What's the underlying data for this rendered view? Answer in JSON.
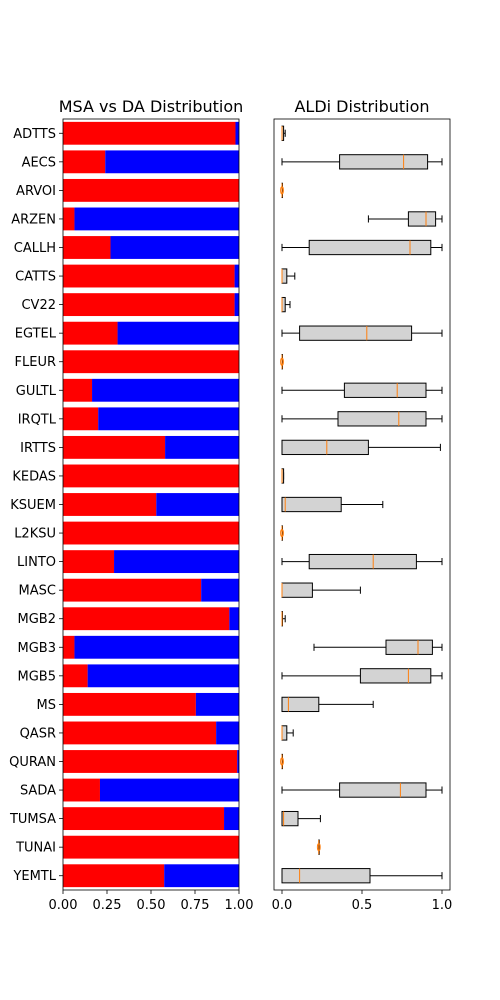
{
  "chart_data": [
    {
      "type": "bar",
      "orientation": "horizontal-stacked",
      "title": "MSA vs DA Distribution",
      "xlim": [
        0,
        1
      ],
      "xticks": [
        "0.00",
        "0.25",
        "0.50",
        "0.75",
        "1.00"
      ],
      "colors": {
        "msa": "#ff0000",
        "da": "#0000ff"
      },
      "categories": [
        "ADTTS",
        "AECS",
        "ARVOI",
        "ARZEN",
        "CALLH",
        "CATTS",
        "CV22",
        "EGTEL",
        "FLEUR",
        "GULTL",
        "IRQTL",
        "IRTTS",
        "KEDAS",
        "KSUEM",
        "L2KSU",
        "LINTO",
        "MASC",
        "MGB2",
        "MGB3",
        "MGB5",
        "MS",
        "QASR",
        "QURAN",
        "SADA",
        "TUMSA",
        "TUNAI",
        "YEMTL"
      ],
      "series": [
        {
          "color": "#ff0000",
          "values": [
            0.98,
            0.24,
            1.0,
            0.065,
            0.27,
            0.975,
            0.975,
            0.31,
            1.0,
            0.165,
            0.2,
            0.58,
            1.0,
            0.53,
            1.0,
            0.29,
            0.785,
            0.945,
            0.065,
            0.14,
            0.755,
            0.87,
            0.99,
            0.21,
            0.915,
            1.0,
            0.575
          ]
        },
        {
          "color": "#0000ff",
          "values": [
            0.02,
            0.76,
            0.0,
            0.935,
            0.73,
            0.025,
            0.025,
            0.69,
            0.0,
            0.835,
            0.8,
            0.42,
            0.0,
            0.47,
            0.0,
            0.71,
            0.215,
            0.055,
            0.935,
            0.86,
            0.245,
            0.13,
            0.01,
            0.79,
            0.085,
            0.0,
            0.425
          ]
        }
      ]
    },
    {
      "type": "boxplot",
      "title": "ALDi Distribution",
      "xlim": [
        -0.05,
        1.05
      ],
      "xticks": [
        "0.0",
        "0.5",
        "1.0"
      ],
      "box_color": "#d3d3d3",
      "median_color": "#ff7f0e",
      "boxes": [
        {
          "min": 0.0,
          "q1": 0.0,
          "median": 0.0,
          "q3": 0.01,
          "max": 0.02,
          "fliers": []
        },
        {
          "min": 0.0,
          "q1": 0.36,
          "median": 0.76,
          "q3": 0.91,
          "max": 1.0,
          "fliers": []
        },
        {
          "min": 0.0,
          "q1": 0.0,
          "median": 0.0,
          "q3": 0.0,
          "max": 0.0,
          "fliers": [
            0.0
          ]
        },
        {
          "min": 0.54,
          "q1": 0.79,
          "median": 0.9,
          "q3": 0.96,
          "max": 1.0,
          "fliers": []
        },
        {
          "min": 0.0,
          "q1": 0.17,
          "median": 0.8,
          "q3": 0.93,
          "max": 1.0,
          "fliers": []
        },
        {
          "min": 0.0,
          "q1": 0.0,
          "median": 0.0,
          "q3": 0.03,
          "max": 0.08,
          "fliers": []
        },
        {
          "min": 0.0,
          "q1": 0.0,
          "median": 0.0,
          "q3": 0.02,
          "max": 0.05,
          "fliers": []
        },
        {
          "min": 0.0,
          "q1": 0.11,
          "median": 0.53,
          "q3": 0.81,
          "max": 1.0,
          "fliers": []
        },
        {
          "min": 0.0,
          "q1": 0.0,
          "median": 0.0,
          "q3": 0.0,
          "max": 0.0,
          "fliers": [
            0.0
          ]
        },
        {
          "min": 0.0,
          "q1": 0.39,
          "median": 0.72,
          "q3": 0.9,
          "max": 1.0,
          "fliers": []
        },
        {
          "min": 0.0,
          "q1": 0.35,
          "median": 0.73,
          "q3": 0.9,
          "max": 1.0,
          "fliers": []
        },
        {
          "min": 0.0,
          "q1": 0.0,
          "median": 0.28,
          "q3": 0.54,
          "max": 0.99,
          "fliers": []
        },
        {
          "min": 0.0,
          "q1": 0.0,
          "median": 0.0,
          "q3": 0.01,
          "max": 0.01,
          "fliers": []
        },
        {
          "min": 0.0,
          "q1": 0.0,
          "median": 0.02,
          "q3": 0.37,
          "max": 0.63,
          "fliers": []
        },
        {
          "min": 0.0,
          "q1": 0.0,
          "median": 0.0,
          "q3": 0.0,
          "max": 0.0,
          "fliers": [
            0.0
          ]
        },
        {
          "min": 0.0,
          "q1": 0.17,
          "median": 0.57,
          "q3": 0.84,
          "max": 1.0,
          "fliers": []
        },
        {
          "min": 0.0,
          "q1": 0.0,
          "median": 0.0,
          "q3": 0.19,
          "max": 0.49,
          "fliers": []
        },
        {
          "min": 0.0,
          "q1": 0.0,
          "median": 0.0,
          "q3": 0.0,
          "max": 0.02,
          "fliers": []
        },
        {
          "min": 0.2,
          "q1": 0.65,
          "median": 0.85,
          "q3": 0.94,
          "max": 1.0,
          "fliers": []
        },
        {
          "min": 0.0,
          "q1": 0.49,
          "median": 0.79,
          "q3": 0.93,
          "max": 1.0,
          "fliers": []
        },
        {
          "min": 0.0,
          "q1": 0.0,
          "median": 0.04,
          "q3": 0.23,
          "max": 0.57,
          "fliers": []
        },
        {
          "min": 0.0,
          "q1": 0.0,
          "median": 0.0,
          "q3": 0.03,
          "max": 0.07,
          "fliers": []
        },
        {
          "min": 0.0,
          "q1": 0.0,
          "median": 0.0,
          "q3": 0.0,
          "max": 0.0,
          "fliers": [
            0.0
          ]
        },
        {
          "min": 0.0,
          "q1": 0.36,
          "median": 0.74,
          "q3": 0.9,
          "max": 1.0,
          "fliers": []
        },
        {
          "min": 0.0,
          "q1": 0.0,
          "median": 0.01,
          "q3": 0.1,
          "max": 0.24,
          "fliers": []
        },
        {
          "min": 0.23,
          "q1": 0.23,
          "median": 0.23,
          "q3": 0.23,
          "max": 0.23,
          "fliers": [
            0.23
          ]
        },
        {
          "min": 0.0,
          "q1": 0.0,
          "median": 0.11,
          "q3": 0.55,
          "max": 1.0,
          "fliers": []
        }
      ]
    }
  ]
}
